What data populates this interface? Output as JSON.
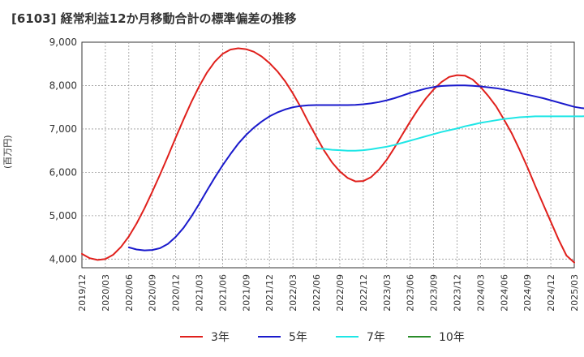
{
  "chart_data": {
    "type": "line",
    "title": "[6103]  経常利益12か月移動合計の標準偏差の推移",
    "ylabel": "(百万円)",
    "xlabel": "",
    "ylim": [
      3800,
      9000
    ],
    "yticks": [
      4000,
      5000,
      6000,
      7000,
      8000,
      9000
    ],
    "ytick_labels": [
      "4,000",
      "5,000",
      "6,000",
      "7,000",
      "8,000",
      "9,000"
    ],
    "xtick_labels": [
      "2019/12",
      "2020/03",
      "2020/06",
      "2020/09",
      "2020/12",
      "2021/03",
      "2021/06",
      "2021/09",
      "2021/12",
      "2022/03",
      "2022/06",
      "2022/09",
      "2022/12",
      "2023/03",
      "2023/06",
      "2023/09",
      "2023/12",
      "2024/03",
      "2024/06",
      "2024/09",
      "2024/12",
      "2025/03"
    ],
    "grid": true,
    "legend_position": "bottom",
    "series": [
      {
        "name": "3年",
        "color": "#e0201c",
        "start_index": 0,
        "values": [
          4120,
          4020,
          3980,
          4000,
          4100,
          4280,
          4520,
          4820,
          5170,
          5550,
          5950,
          6370,
          6800,
          7220,
          7620,
          7980,
          8300,
          8550,
          8730,
          8830,
          8860,
          8840,
          8780,
          8670,
          8520,
          8330,
          8100,
          7820,
          7500,
          7150,
          6820,
          6500,
          6230,
          6020,
          5870,
          5790,
          5800,
          5890,
          6060,
          6290,
          6570,
          6870,
          7170,
          7450,
          7700,
          7910,
          8080,
          8200,
          8240,
          8230,
          8140,
          7970,
          7760,
          7520,
          7220,
          6900,
          6520,
          6120,
          5690,
          5270,
          4860,
          4450,
          4080,
          3920
        ]
      },
      {
        "name": "5年",
        "color": "#1a1acc",
        "start_index": 6,
        "values": [
          4270,
          4220,
          4200,
          4210,
          4250,
          4350,
          4510,
          4720,
          4980,
          5270,
          5580,
          5880,
          6160,
          6420,
          6660,
          6860,
          7030,
          7170,
          7290,
          7380,
          7450,
          7500,
          7530,
          7545,
          7550,
          7550,
          7550,
          7550,
          7550,
          7555,
          7570,
          7590,
          7620,
          7660,
          7710,
          7770,
          7830,
          7880,
          7930,
          7965,
          7990,
          8000,
          8005,
          8005,
          7995,
          7980,
          7960,
          7940,
          7910,
          7870,
          7830,
          7790,
          7750,
          7710,
          7660,
          7610,
          7560,
          7510,
          7480,
          7460
        ]
      },
      {
        "name": "7年",
        "color": "#1ee6e6",
        "start_index": 30,
        "values": [
          6550,
          6540,
          6520,
          6510,
          6500,
          6500,
          6510,
          6530,
          6560,
          6590,
          6630,
          6680,
          6730,
          6780,
          6830,
          6880,
          6930,
          6970,
          7010,
          7060,
          7100,
          7140,
          7170,
          7200,
          7230,
          7250,
          7270,
          7280,
          7290,
          7290,
          7290,
          7290,
          7290,
          7290,
          7290,
          7300
        ]
      },
      {
        "name": "10年",
        "color": "#2a8c2a",
        "start_index": 0,
        "values": []
      }
    ]
  }
}
